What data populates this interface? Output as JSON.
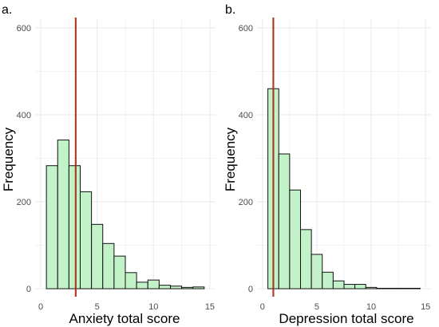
{
  "colors": {
    "bar_fill": "#c2f2c8",
    "bar_stroke": "#111111",
    "grid": "#ebebeb",
    "marker_line": "#a52a15",
    "tick_text": "#4d4d4d",
    "axis_text": "#000000"
  },
  "chart_data": [
    {
      "type": "bar",
      "panel_label": "a.",
      "xlabel": "Anxiety total score",
      "ylabel": "Frequency",
      "xlim": [
        -0.5,
        15.5
      ],
      "ylim": [
        0,
        620
      ],
      "x_ticks": [
        0,
        5,
        10,
        15
      ],
      "y_ticks": [
        0,
        200,
        400,
        600
      ],
      "grid": true,
      "bins": [
        {
          "x": 1,
          "value": 283
        },
        {
          "x": 2,
          "value": 342
        },
        {
          "x": 3,
          "value": 283
        },
        {
          "x": 4,
          "value": 223
        },
        {
          "x": 5,
          "value": 148
        },
        {
          "x": 6,
          "value": 104
        },
        {
          "x": 7,
          "value": 75
        },
        {
          "x": 8,
          "value": 37
        },
        {
          "x": 9,
          "value": 15
        },
        {
          "x": 10,
          "value": 20
        },
        {
          "x": 11,
          "value": 8
        },
        {
          "x": 12,
          "value": 6
        },
        {
          "x": 13,
          "value": 3
        },
        {
          "x": 14,
          "value": 4
        }
      ],
      "bin_width": 1,
      "vline": 3.1
    },
    {
      "type": "bar",
      "panel_label": "b.",
      "xlabel": "Depression total score",
      "ylabel": "Frequency",
      "xlim": [
        -0.5,
        15.5
      ],
      "ylim": [
        0,
        620
      ],
      "x_ticks": [
        0,
        5,
        10,
        15
      ],
      "y_ticks": [
        0,
        200,
        400,
        600
      ],
      "grid": true,
      "bins": [
        {
          "x": 1,
          "value": 460
        },
        {
          "x": 2,
          "value": 310
        },
        {
          "x": 3,
          "value": 227
        },
        {
          "x": 4,
          "value": 136
        },
        {
          "x": 5,
          "value": 79
        },
        {
          "x": 6,
          "value": 38
        },
        {
          "x": 7,
          "value": 18
        },
        {
          "x": 8,
          "value": 10
        },
        {
          "x": 9,
          "value": 10
        },
        {
          "x": 10,
          "value": 3
        },
        {
          "x": 11,
          "value": 1
        },
        {
          "x": 12,
          "value": 1
        },
        {
          "x": 13,
          "value": 1
        },
        {
          "x": 14,
          "value": 1
        }
      ],
      "bin_width": 1,
      "vline": 1.0
    }
  ]
}
